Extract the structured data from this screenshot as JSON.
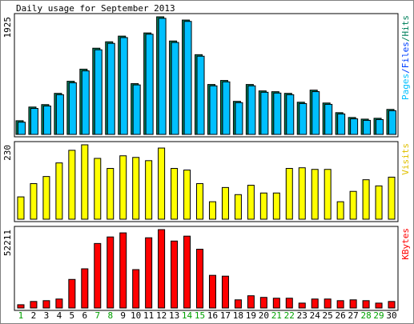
{
  "chart_data": [
    {
      "type": "bar",
      "title": "Daily usage for September 2013",
      "y_label_parts": [
        "Pages",
        "/",
        "Files",
        "/",
        "Hits"
      ],
      "y_label_colors": [
        "#00c0ff",
        "#0040ff",
        "#0040ff",
        "#00805c",
        "#00805c"
      ],
      "ylim": [
        0,
        1925
      ],
      "yticks": [
        1925
      ],
      "series": [
        {
          "name": "Hits",
          "color": "#00805c",
          "values": [
            224,
            448,
            488,
            672,
            870,
            1068,
            1411,
            1516,
            1609,
            831,
            1661,
            1925,
            1529,
            1872,
            1305,
            817,
            883,
            541,
            817,
            712,
            699,
            672,
            527,
            725,
            514,
            356,
            277,
            250,
            264,
            409
          ]
        },
        {
          "name": "Files",
          "color": "#00c0ff",
          "values": [
            200,
            425,
            465,
            650,
            845,
            1040,
            1385,
            1490,
            1585,
            810,
            1640,
            1900,
            1505,
            1850,
            1280,
            795,
            860,
            520,
            795,
            690,
            677,
            650,
            505,
            700,
            492,
            335,
            255,
            230,
            243,
            388
          ]
        }
      ]
    },
    {
      "type": "bar",
      "y_label": "Visits",
      "color": "#ffff00",
      "label_color": "#e0c000",
      "ylim": [
        0,
        230
      ],
      "yticks": [
        230
      ],
      "values": [
        69,
        110,
        132,
        174,
        213,
        230,
        188,
        157,
        196,
        191,
        181,
        220,
        157,
        152,
        110,
        54,
        98,
        76,
        105,
        81,
        81,
        157,
        159,
        154,
        154,
        54,
        86,
        122,
        103,
        130
      ]
    },
    {
      "type": "bar",
      "y_label": "KBytes",
      "color": "#ff0000",
      "label_color": "#ff0000",
      "ylim": [
        0,
        52211
      ],
      "yticks": [
        52211
      ],
      "categories": [
        "1",
        "2",
        "3",
        "4",
        "5",
        "6",
        "7",
        "8",
        "9",
        "10",
        "11",
        "12",
        "13",
        "14",
        "15",
        "16",
        "17",
        "18",
        "19",
        "20",
        "21",
        "22",
        "23",
        "24",
        "25",
        "26",
        "27",
        "28",
        "29",
        "30"
      ],
      "weekend": [
        true,
        false,
        false,
        false,
        false,
        false,
        true,
        true,
        false,
        false,
        false,
        false,
        false,
        true,
        true,
        false,
        false,
        false,
        false,
        false,
        true,
        true,
        false,
        false,
        false,
        false,
        false,
        true,
        true,
        false
      ],
      "weekend_color": "#00a000",
      "values": [
        2175,
        4351,
        4895,
        5983,
        19035,
        26106,
        42965,
        47316,
        50036,
        25562,
        46772,
        52211,
        44597,
        47860,
        39157,
        21754,
        21210,
        5439,
        8158,
        7070,
        6526,
        6526,
        3263,
        5983,
        5983,
        4895,
        5439,
        4895,
        3263,
        4351
      ]
    }
  ]
}
